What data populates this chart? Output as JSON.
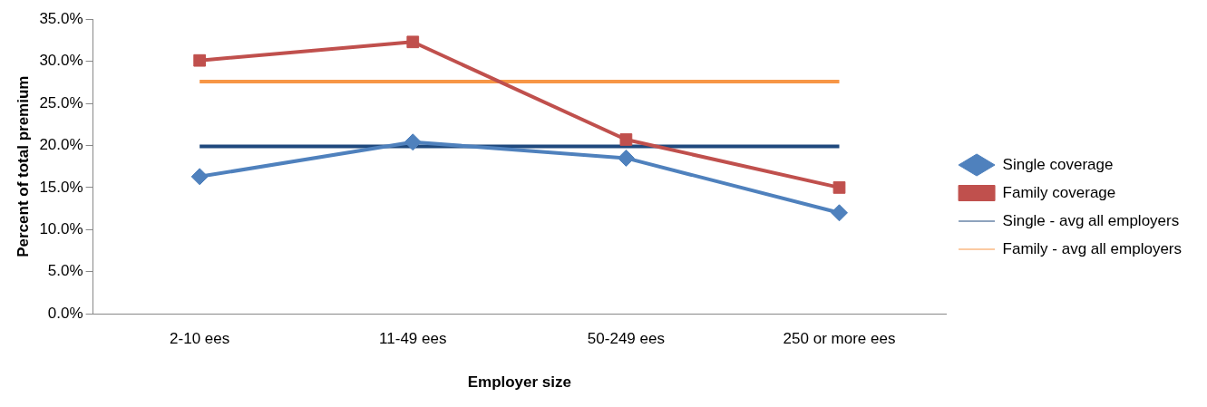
{
  "chart_data": {
    "type": "line",
    "xlabel": "Employer size",
    "ylabel": "Percent of total premium",
    "categories": [
      "2-10 ees",
      "11-49 ees",
      "50-249 ees",
      "250 or more ees"
    ],
    "series": [
      {
        "name": "Single coverage",
        "color": "#4f81bd",
        "marker": "diamond",
        "values": [
          16.3,
          20.4,
          18.5,
          12.0
        ]
      },
      {
        "name": "Family coverage",
        "color": "#c0504d",
        "marker": "square",
        "values": [
          30.1,
          32.3,
          20.7,
          15.0
        ]
      },
      {
        "name": "Single - avg all employers",
        "color": "#1f497d",
        "marker": "none",
        "values": [
          19.9,
          19.9,
          19.9,
          19.9
        ]
      },
      {
        "name": "Family - avg all employers",
        "color": "#f79646",
        "marker": "none",
        "values": [
          27.6,
          27.6,
          27.6,
          27.6
        ]
      }
    ],
    "ylim": [
      0,
      35
    ],
    "yticks": [
      {
        "value": 0,
        "label": "0.0%"
      },
      {
        "value": 5,
        "label": "5.0%"
      },
      {
        "value": 10,
        "label": "10.0%"
      },
      {
        "value": 15,
        "label": "15.0%"
      },
      {
        "value": 20,
        "label": "20.0%"
      },
      {
        "value": 25,
        "label": "25.0%"
      },
      {
        "value": 30,
        "label": "30.0%"
      },
      {
        "value": 35,
        "label": "35.0%"
      }
    ],
    "grid": false,
    "legend": "right",
    "line_style": "solid"
  }
}
